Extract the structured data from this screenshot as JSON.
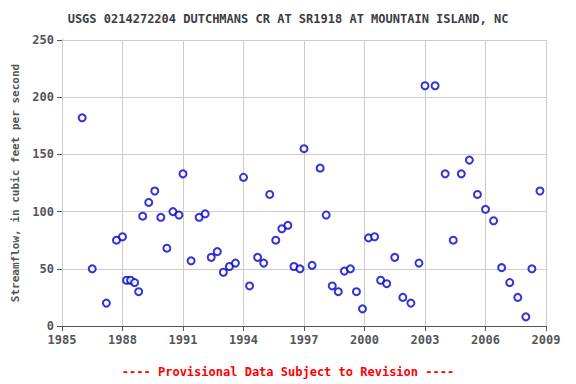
{
  "chart_data": {
    "type": "scatter",
    "title": "USGS 0214272204 DUTCHMANS CR AT SR1918 AT MOUNTAIN ISLAND, NC",
    "ylabel": "Streamflow, in cubic feet per second",
    "annotation": "---- Provisional Data Subject to Revision ----",
    "x": [
      1986.0,
      1986.5,
      1987.2,
      1987.7,
      1988.0,
      1988.2,
      1988.4,
      1988.6,
      1988.8,
      1989.0,
      1989.3,
      1989.6,
      1989.9,
      1990.2,
      1990.5,
      1990.8,
      1991.0,
      1991.4,
      1991.8,
      1992.1,
      1992.4,
      1992.7,
      1993.0,
      1993.3,
      1993.6,
      1994.0,
      1994.3,
      1994.7,
      1995.0,
      1995.3,
      1995.6,
      1995.9,
      1996.2,
      1996.5,
      1996.8,
      1997.0,
      1997.4,
      1997.8,
      1998.1,
      1998.4,
      1998.7,
      1999.0,
      1999.3,
      1999.6,
      1999.9,
      2000.2,
      2000.5,
      2000.8,
      2001.1,
      2001.5,
      2001.9,
      2002.3,
      2002.7,
      2003.0,
      2003.5,
      2004.0,
      2004.4,
      2004.8,
      2005.2,
      2005.6,
      2006.0,
      2006.4,
      2006.8,
      2007.2,
      2007.6,
      2008.0,
      2008.3,
      2008.7
    ],
    "values": [
      182,
      50,
      20,
      75,
      78,
      40,
      40,
      38,
      30,
      96,
      108,
      118,
      95,
      68,
      100,
      97,
      133,
      57,
      95,
      98,
      60,
      65,
      47,
      52,
      55,
      130,
      35,
      60,
      55,
      115,
      75,
      85,
      88,
      52,
      50,
      155,
      53,
      138,
      97,
      35,
      30,
      48,
      50,
      30,
      15,
      77,
      78,
      40,
      37,
      60,
      25,
      20,
      55,
      210,
      210,
      133,
      75,
      133,
      145,
      115,
      102,
      92,
      51,
      38,
      25,
      8,
      50,
      118
    ],
    "color": "#0000cc",
    "marker": "circle",
    "xlim": [
      1985,
      2009
    ],
    "ylim": [
      0,
      250
    ],
    "xticks": [
      1985,
      1988,
      1991,
      1994,
      1997,
      2000,
      2003,
      2006,
      2009
    ],
    "yticks": [
      0,
      50,
      100,
      150,
      200,
      250
    ],
    "grid": true
  }
}
